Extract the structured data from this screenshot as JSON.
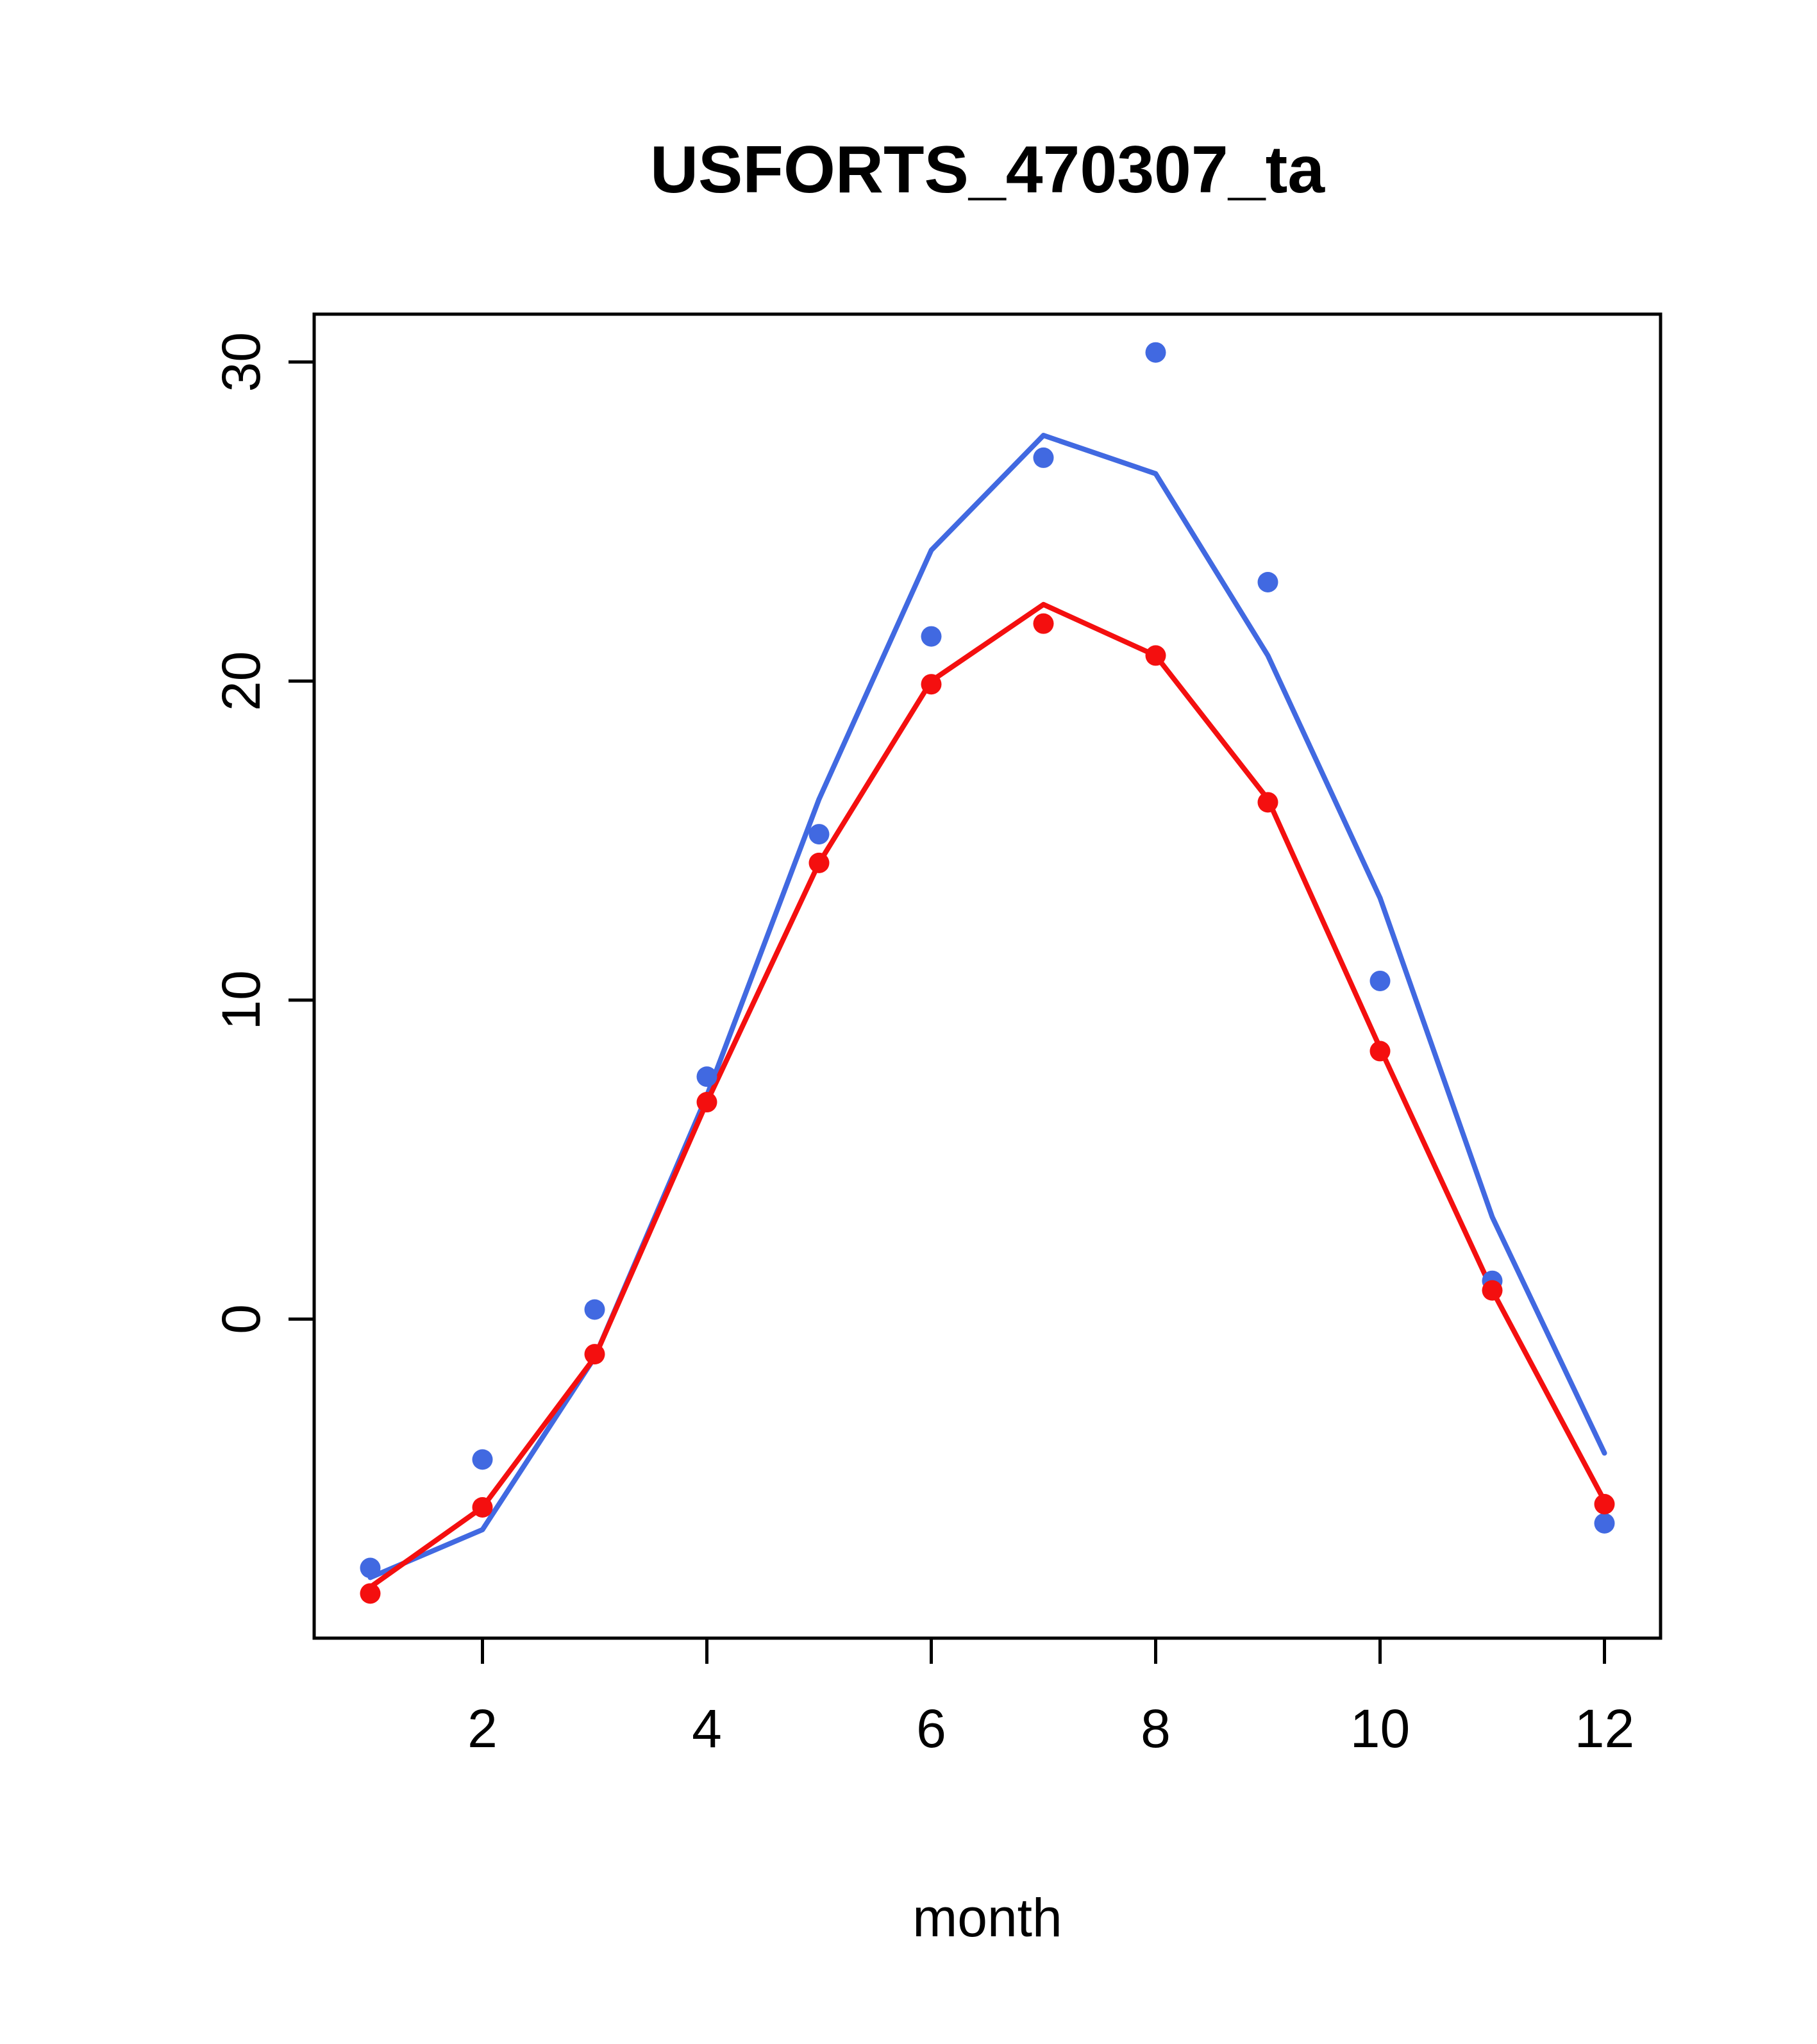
{
  "chart_data": {
    "type": "line",
    "title": "USFORTS_470307_ta",
    "xlabel": "month",
    "ylabel": "",
    "x": [
      1,
      2,
      3,
      4,
      5,
      6,
      7,
      8,
      9,
      10,
      11,
      12
    ],
    "xlim": [
      0.5,
      12.5
    ],
    "ylim": [
      -10,
      31.5
    ],
    "xticks": [
      2,
      4,
      6,
      8,
      10,
      12
    ],
    "yticks": [
      0,
      10,
      20,
      30
    ],
    "grid": false,
    "legend": "none",
    "colors": {
      "blue": "#4169E1",
      "red": "#F40F0F"
    },
    "series": [
      {
        "name": "blue-line",
        "style": "line",
        "color": "#4169E1",
        "values": [
          -8.1,
          -6.6,
          -1.2,
          7.0,
          16.3,
          24.1,
          27.7,
          26.5,
          20.8,
          13.2,
          3.2,
          -4.2
        ]
      },
      {
        "name": "red-line",
        "style": "line",
        "color": "#F40F0F",
        "values": [
          -8.4,
          -5.9,
          -1.2,
          6.8,
          14.3,
          20.0,
          22.4,
          20.8,
          16.3,
          8.5,
          0.9,
          -5.7
        ]
      },
      {
        "name": "blue-points",
        "style": "points",
        "color": "#4169E1",
        "values": [
          -7.8,
          -4.4,
          0.3,
          7.6,
          15.2,
          21.4,
          27.0,
          30.3,
          23.1,
          10.6,
          1.2,
          -6.4
        ]
      },
      {
        "name": "red-points",
        "style": "points",
        "color": "#F40F0F",
        "values": [
          -8.6,
          -5.9,
          -1.1,
          6.8,
          14.3,
          19.9,
          21.8,
          20.8,
          16.2,
          8.4,
          0.9,
          -5.8
        ]
      }
    ]
  }
}
